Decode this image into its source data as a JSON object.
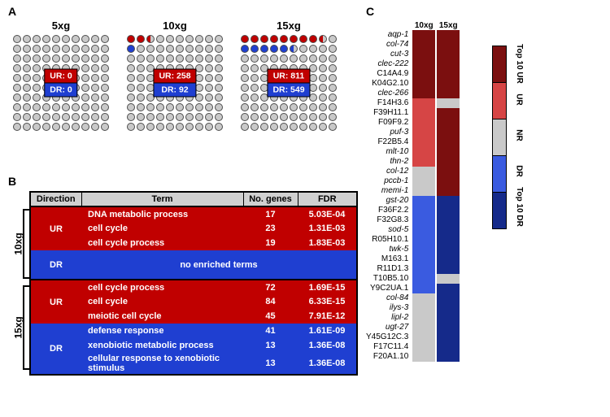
{
  "colors": {
    "ur": "#c00000",
    "ur_dark": "#7b0f0f",
    "ur_mid": "#d64545",
    "dr": "#1f3fd1",
    "dr_dark": "#152a8a",
    "dr_mid": "#3a5be0",
    "nr": "#c9c9c9",
    "dot_grey": "#c9c9c9",
    "dot_stroke": "#4d4d4d",
    "header_bg": "#d0d0d0",
    "black": "#000000",
    "white": "#ffffff"
  },
  "panelA": {
    "label": "A",
    "rows": 10,
    "cols": 10,
    "grids": [
      {
        "title": "5xg",
        "ur_label": "UR: 0",
        "dr_label": "DR: 0",
        "top_cells": [
          "g",
          "g",
          "g",
          "g",
          "g",
          "g",
          "g",
          "g",
          "g",
          "g",
          "g",
          "g",
          "g",
          "g",
          "g",
          "g",
          "g",
          "g",
          "g",
          "g"
        ]
      },
      {
        "title": "10xg",
        "ur_label": "UR: 258",
        "dr_label": "DR: 92",
        "top_cells": [
          "r",
          "r",
          "rh",
          "g",
          "g",
          "g",
          "g",
          "g",
          "g",
          "g",
          "b",
          "g",
          "g",
          "g",
          "g",
          "g",
          "g",
          "g",
          "g",
          "g"
        ]
      },
      {
        "title": "15xg",
        "ur_label": "UR: 811",
        "dr_label": "DR: 549",
        "top_cells": [
          "r",
          "r",
          "r",
          "r",
          "r",
          "r",
          "r",
          "r",
          "rh",
          "g",
          "b",
          "b",
          "b",
          "b",
          "b",
          "bh",
          "g",
          "g",
          "g",
          "g"
        ]
      }
    ]
  },
  "panelB": {
    "label": "B",
    "headers": {
      "dir": "Direction",
      "term": "Term",
      "ng": "No. genes",
      "fdr": "FDR"
    },
    "groups": [
      {
        "side": "10xg",
        "blocks": [
          {
            "dir": "UR",
            "color": "ur",
            "rows": [
              {
                "term": "DNA metabolic process",
                "ng": "17",
                "fdr": "5.03E-04"
              },
              {
                "term": "cell cycle",
                "ng": "23",
                "fdr": "1.31E-03"
              },
              {
                "term": "cell cycle process",
                "ng": "19",
                "fdr": "1.83E-03"
              }
            ]
          },
          {
            "dir": "DR",
            "color": "dr",
            "rows": [],
            "empty_text": "no enriched terms"
          }
        ]
      },
      {
        "side": "15xg",
        "blocks": [
          {
            "dir": "UR",
            "color": "ur",
            "rows": [
              {
                "term": "cell cycle process",
                "ng": "72",
                "fdr": "1.69E-15"
              },
              {
                "term": "cell cycle",
                "ng": "84",
                "fdr": "6.33E-15"
              },
              {
                "term": "meiotic cell cycle",
                "ng": "45",
                "fdr": "7.91E-12"
              }
            ]
          },
          {
            "dir": "DR",
            "color": "dr",
            "rows": [
              {
                "term": "defense response",
                "ng": "41",
                "fdr": "1.61E-09"
              },
              {
                "term": "xenobiotic metabolic process",
                "ng": "13",
                "fdr": "1.36E-08"
              },
              {
                "term": "cellular response to xenobiotic stimulus",
                "ng": "13",
                "fdr": "1.36E-08"
              }
            ]
          }
        ]
      }
    ]
  },
  "panelC": {
    "label": "C",
    "col_headers": [
      "10xg",
      "15xg"
    ],
    "genes": [
      {
        "n": "aqp-1",
        "it": true,
        "c": [
          "ur_dark",
          "ur_dark"
        ]
      },
      {
        "n": "col-74",
        "it": true,
        "c": [
          "ur_dark",
          "ur_dark"
        ]
      },
      {
        "n": "cut-3",
        "it": true,
        "c": [
          "ur_dark",
          "ur_dark"
        ]
      },
      {
        "n": "clec-222",
        "it": true,
        "c": [
          "ur_dark",
          "ur_dark"
        ]
      },
      {
        "n": "C14A4.9",
        "it": false,
        "c": [
          "ur_dark",
          "ur_dark"
        ]
      },
      {
        "n": "K04G2.10",
        "it": false,
        "c": [
          "ur_dark",
          "ur_dark"
        ]
      },
      {
        "n": "clec-266",
        "it": true,
        "c": [
          "ur_dark",
          "ur_dark"
        ]
      },
      {
        "n": "F14H3.6",
        "it": false,
        "c": [
          "ur_mid",
          "nr"
        ]
      },
      {
        "n": "F39H11.1",
        "it": false,
        "c": [
          "ur_mid",
          "ur_dark"
        ]
      },
      {
        "n": "F09F9.2",
        "it": false,
        "c": [
          "ur_mid",
          "ur_dark"
        ]
      },
      {
        "n": "puf-3",
        "it": true,
        "c": [
          "ur_mid",
          "ur_dark"
        ]
      },
      {
        "n": "F22B5.4",
        "it": false,
        "c": [
          "ur_mid",
          "ur_dark"
        ]
      },
      {
        "n": "mlt-10",
        "it": true,
        "c": [
          "ur_mid",
          "ur_dark"
        ]
      },
      {
        "n": "thn-2",
        "it": true,
        "c": [
          "ur_mid",
          "ur_dark"
        ]
      },
      {
        "n": "col-12",
        "it": true,
        "c": [
          "nr",
          "ur_dark"
        ]
      },
      {
        "n": "pccb-1",
        "it": true,
        "c": [
          "nr",
          "ur_dark"
        ]
      },
      {
        "n": "memi-1",
        "it": true,
        "c": [
          "nr",
          "ur_dark"
        ]
      },
      {
        "n": "gst-20",
        "it": true,
        "c": [
          "dr_mid",
          "dr_dark"
        ]
      },
      {
        "n": "F36F2.2",
        "it": false,
        "c": [
          "dr_mid",
          "dr_dark"
        ]
      },
      {
        "n": "F32G8.3",
        "it": false,
        "c": [
          "dr_mid",
          "dr_dark"
        ]
      },
      {
        "n": "sod-5",
        "it": true,
        "c": [
          "dr_mid",
          "dr_dark"
        ]
      },
      {
        "n": "R05H10.1",
        "it": false,
        "c": [
          "dr_mid",
          "dr_dark"
        ]
      },
      {
        "n": "twk-5",
        "it": true,
        "c": [
          "dr_mid",
          "dr_dark"
        ]
      },
      {
        "n": "M163.1",
        "it": false,
        "c": [
          "dr_mid",
          "dr_dark"
        ]
      },
      {
        "n": "R11D1.3",
        "it": false,
        "c": [
          "dr_mid",
          "dr_dark"
        ]
      },
      {
        "n": "T10B5.10",
        "it": false,
        "c": [
          "dr_mid",
          "nr"
        ]
      },
      {
        "n": "Y9C2UA.1",
        "it": false,
        "c": [
          "dr_mid",
          "dr_dark"
        ]
      },
      {
        "n": "col-84",
        "it": true,
        "c": [
          "nr",
          "dr_dark"
        ]
      },
      {
        "n": "ilys-3",
        "it": true,
        "c": [
          "nr",
          "dr_dark"
        ]
      },
      {
        "n": "lipl-2",
        "it": true,
        "c": [
          "nr",
          "dr_dark"
        ]
      },
      {
        "n": "ugt-27",
        "it": true,
        "c": [
          "nr",
          "dr_dark"
        ]
      },
      {
        "n": "Y45G12C.3",
        "it": false,
        "c": [
          "nr",
          "dr_dark"
        ]
      },
      {
        "n": "F17C11.4",
        "it": false,
        "c": [
          "nr",
          "dr_dark"
        ]
      },
      {
        "n": "F20A1.10",
        "it": false,
        "c": [
          "nr",
          "dr_dark"
        ]
      }
    ],
    "legend": [
      {
        "lab": "Top 10 UR",
        "color": "ur_dark"
      },
      {
        "lab": "UR",
        "color": "ur_mid"
      },
      {
        "lab": "NR",
        "color": "nr"
      },
      {
        "lab": "DR",
        "color": "dr_mid"
      },
      {
        "lab": "Top 10 DR",
        "color": "dr_dark"
      }
    ]
  }
}
